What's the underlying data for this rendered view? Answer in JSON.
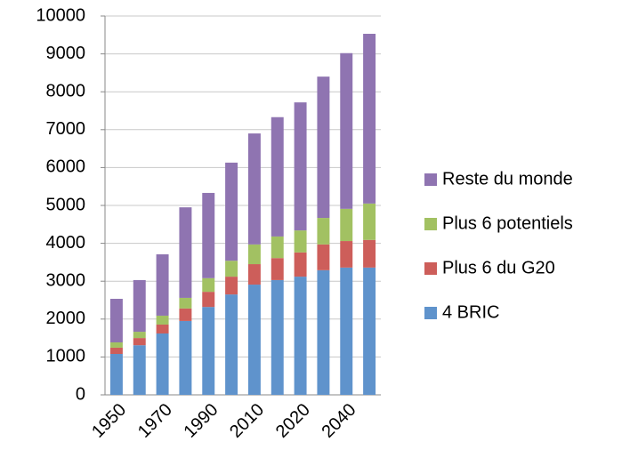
{
  "chart_data": {
    "type": "bar",
    "stacked": true,
    "categories": [
      "1950",
      null,
      "1970",
      null,
      "1990",
      null,
      "2010",
      null,
      "2020",
      null,
      "2040",
      null
    ],
    "series": [
      {
        "name": "4 BRIC",
        "color": "#5f93cc",
        "values": [
          1080,
          1310,
          1620,
          1950,
          2320,
          2650,
          2910,
          3030,
          3120,
          3290,
          3360,
          3360
        ]
      },
      {
        "name": "Plus 6 du G20",
        "color": "#cd5e5a",
        "values": [
          165,
          190,
          235,
          330,
          400,
          470,
          540,
          580,
          640,
          680,
          700,
          730
        ]
      },
      {
        "name": "Plus 6 potentiels",
        "color": "#a2c162",
        "values": [
          140,
          165,
          235,
          280,
          360,
          420,
          520,
          570,
          580,
          700,
          850,
          960
        ]
      },
      {
        "name": "Reste du monde",
        "color": "#8f74b1",
        "values": [
          1150,
          1365,
          1620,
          2390,
          2250,
          2590,
          2930,
          3150,
          3380,
          3730,
          4110,
          4480
        ]
      }
    ],
    "ylim": [
      0,
      10000
    ],
    "yticks": [
      0,
      1000,
      2000,
      3000,
      4000,
      5000,
      6000,
      7000,
      8000,
      9000,
      10000
    ],
    "grid": true,
    "legend": "right"
  }
}
